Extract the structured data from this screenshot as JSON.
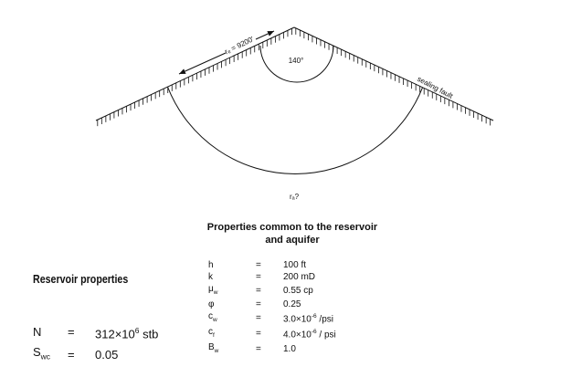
{
  "diagram": {
    "radius_label": "rₑ = 9200'",
    "angle_label": "140°",
    "fault_label": "sealing fault",
    "question_label": "rₐ?"
  },
  "common": {
    "heading_line1": "Properties common to the reservoir",
    "heading_line2": "and aquifer",
    "rows": [
      {
        "sym": "h",
        "sub": "",
        "eq": "=",
        "val": "100 ft",
        "exp": "",
        "unit": ""
      },
      {
        "sym": "k",
        "sub": "",
        "eq": "=",
        "val": "200 mD",
        "exp": "",
        "unit": ""
      },
      {
        "sym": "μ",
        "sub": "w",
        "eq": "=",
        "val": "0.55 cp",
        "exp": "",
        "unit": ""
      },
      {
        "sym": "φ",
        "sub": "",
        "eq": "=",
        "val": "0.25",
        "exp": "",
        "unit": ""
      },
      {
        "sym": "c",
        "sub": "w",
        "eq": "=",
        "val": "3.0×10",
        "exp": "-6",
        "unit": " /psi"
      },
      {
        "sym": "c",
        "sub": "f",
        "eq": "=",
        "val": "4.0×10",
        "exp": "-6",
        "unit": " / psi"
      },
      {
        "sym": "B",
        "sub": "w",
        "eq": "=",
        "val": "1.0",
        "exp": "",
        "unit": ""
      }
    ]
  },
  "reservoir": {
    "heading": "Reservoir properties",
    "rows": [
      {
        "sym": "N",
        "sub": "",
        "eq": "=",
        "val": "312×10",
        "exp": "6",
        "unit": " stb"
      },
      {
        "sym": "S",
        "sub": "wc",
        "eq": "=",
        "val": "0.05",
        "exp": "",
        "unit": ""
      }
    ]
  }
}
